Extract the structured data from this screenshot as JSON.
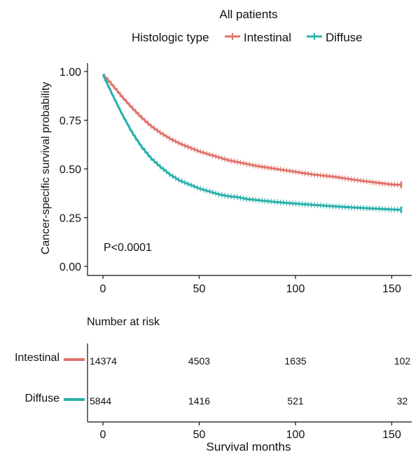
{
  "chart_data": [
    {
      "type": "line",
      "title": "All patients",
      "legend": {
        "title": "Histologic type",
        "position": "top",
        "entries": [
          {
            "name": "Intestinal",
            "color": "#E0736A"
          },
          {
            "name": "Diffuse",
            "color": "#2AB0AC"
          }
        ]
      },
      "xlabel": "",
      "ylabel": "Cancer-specific survival probability",
      "xlim": [
        0,
        155
      ],
      "ylim": [
        0,
        1
      ],
      "x_ticks": [
        "0",
        "50",
        "100",
        "150"
      ],
      "x_ticks_note": "second tick label is partially clipped in the image, rendered as '50'",
      "y_ticks": [
        "0.00",
        "0.25",
        "0.50",
        "0.75",
        "1.00"
      ],
      "grid": false,
      "annotation": "P<0.0001",
      "series": [
        {
          "name": "Intestinal",
          "color": "#E0736A",
          "points": [
            [
              0,
              0.985
            ],
            [
              5,
              0.93
            ],
            [
              10,
              0.87
            ],
            [
              15,
              0.815
            ],
            [
              20,
              0.765
            ],
            [
              25,
              0.72
            ],
            [
              30,
              0.685
            ],
            [
              35,
              0.655
            ],
            [
              40,
              0.63
            ],
            [
              45,
              0.61
            ],
            [
              50,
              0.59
            ],
            [
              55,
              0.575
            ],
            [
              60,
              0.56
            ],
            [
              65,
              0.545
            ],
            [
              70,
              0.535
            ],
            [
              75,
              0.525
            ],
            [
              80,
              0.515
            ],
            [
              90,
              0.5
            ],
            [
              100,
              0.485
            ],
            [
              110,
              0.47
            ],
            [
              120,
              0.46
            ],
            [
              130,
              0.445
            ],
            [
              140,
              0.432
            ],
            [
              150,
              0.42
            ],
            [
              155,
              0.418
            ]
          ]
        },
        {
          "name": "Diffuse",
          "color": "#2AB0AC",
          "points": [
            [
              0,
              0.985
            ],
            [
              5,
              0.88
            ],
            [
              10,
              0.78
            ],
            [
              15,
              0.69
            ],
            [
              20,
              0.615
            ],
            [
              25,
              0.555
            ],
            [
              30,
              0.51
            ],
            [
              35,
              0.47
            ],
            [
              40,
              0.44
            ],
            [
              45,
              0.42
            ],
            [
              50,
              0.4
            ],
            [
              55,
              0.385
            ],
            [
              60,
              0.37
            ],
            [
              65,
              0.36
            ],
            [
              70,
              0.355
            ],
            [
              75,
              0.345
            ],
            [
              80,
              0.34
            ],
            [
              90,
              0.33
            ],
            [
              100,
              0.322
            ],
            [
              110,
              0.315
            ],
            [
              120,
              0.308
            ],
            [
              130,
              0.302
            ],
            [
              140,
              0.297
            ],
            [
              150,
              0.292
            ],
            [
              155,
              0.29
            ]
          ]
        }
      ]
    },
    {
      "type": "table",
      "title": "Number at risk",
      "xlabel": "Survival months",
      "x_ticks": [
        "0",
        "50",
        "100",
        "150"
      ],
      "xlim": [
        0,
        155
      ],
      "time_points": [
        0,
        50,
        100,
        150
      ],
      "rows": [
        {
          "name": "Intestinal",
          "color": "#E0736A",
          "values": [
            "14374",
            "4503",
            "1635",
            "102"
          ]
        },
        {
          "name": "Diffuse",
          "color": "#2AB0AC",
          "values": [
            "5844",
            "1416",
            "521",
            "32"
          ]
        }
      ]
    }
  ]
}
